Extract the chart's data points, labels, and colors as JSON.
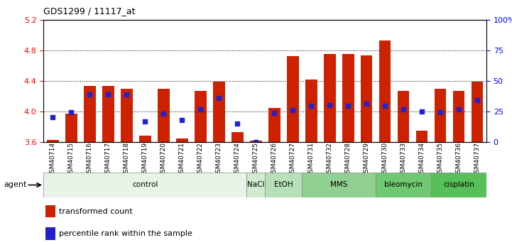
{
  "title": "GDS1299 / 11117_at",
  "samples": [
    "GSM40714",
    "GSM40715",
    "GSM40716",
    "GSM40717",
    "GSM40718",
    "GSM40719",
    "GSM40720",
    "GSM40721",
    "GSM40722",
    "GSM40723",
    "GSM40724",
    "GSM40725",
    "GSM40726",
    "GSM40727",
    "GSM40731",
    "GSM40732",
    "GSM40728",
    "GSM40729",
    "GSM40730",
    "GSM40733",
    "GSM40734",
    "GSM40735",
    "GSM40736",
    "GSM40737"
  ],
  "bar_values": [
    3.63,
    3.97,
    4.33,
    4.33,
    4.3,
    3.68,
    4.3,
    3.65,
    4.27,
    4.39,
    3.73,
    3.62,
    4.05,
    4.72,
    4.42,
    4.75,
    4.75,
    4.73,
    4.93,
    4.27,
    3.75,
    4.3,
    4.27,
    4.39
  ],
  "blue_values": [
    3.93,
    3.99,
    4.22,
    4.22,
    4.22,
    3.87,
    3.97,
    3.89,
    4.03,
    4.18,
    3.84,
    3.6,
    3.98,
    4.02,
    4.07,
    4.08,
    4.07,
    4.1,
    4.07,
    4.03,
    4.0,
    3.99,
    4.03,
    4.15
  ],
  "bar_color": "#cc2200",
  "blue_color": "#2222cc",
  "ylim_left": [
    3.6,
    5.2
  ],
  "ylim_right": [
    0,
    100
  ],
  "yticks_left": [
    3.6,
    4.0,
    4.4,
    4.8,
    5.2
  ],
  "yticks_right": [
    0,
    25,
    50,
    75,
    100
  ],
  "ytick_labels_right": [
    "0",
    "25",
    "50",
    "75",
    "100%"
  ],
  "dotted_lines": [
    4.0,
    4.4,
    4.8
  ],
  "agent_groups": [
    {
      "label": "control",
      "start": 0,
      "end": 10,
      "color": "#e8f4e8"
    },
    {
      "label": "NaCl",
      "start": 11,
      "end": 11,
      "color": "#d0ebd0"
    },
    {
      "label": "EtOH",
      "start": 12,
      "end": 13,
      "color": "#b8e0b8"
    },
    {
      "label": "MMS",
      "start": 14,
      "end": 17,
      "color": "#90d090"
    },
    {
      "label": "bleomycin",
      "start": 18,
      "end": 20,
      "color": "#70c870"
    },
    {
      "label": "cisplatin",
      "start": 21,
      "end": 23,
      "color": "#58c058"
    }
  ],
  "legend_red_label": "transformed count",
  "legend_blue_label": "percentile rank within the sample",
  "agent_label": "agent"
}
